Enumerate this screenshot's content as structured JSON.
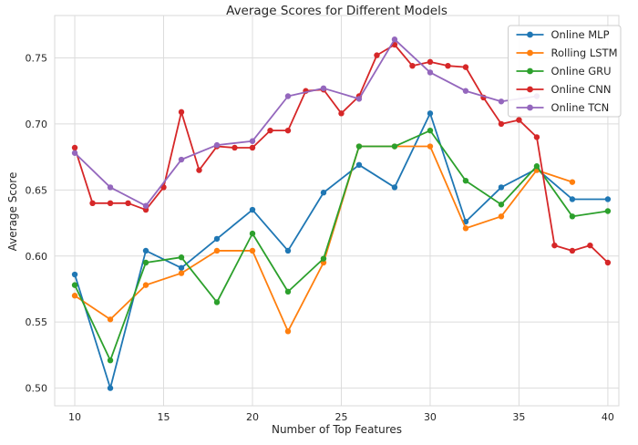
{
  "figure": {
    "title": "Average Scores for Different Models",
    "xlabel": "Number of Top Features",
    "ylabel": "Average Score"
  },
  "chart_data": {
    "type": "line",
    "title": "Average Scores for Different Models",
    "xlabel": "Number of Top Features",
    "ylabel": "Average Score",
    "grid": true,
    "legend_position": "upper right",
    "xlim": [
      8.87,
      40.62
    ],
    "ylim": [
      0.4866,
      0.7821
    ],
    "x_ticks": [
      10,
      15,
      20,
      25,
      30,
      35,
      40
    ],
    "y_ticks": [
      0.5,
      0.55,
      0.6,
      0.65,
      0.7,
      0.75
    ],
    "colors": {
      "grid": "#dcdcdc",
      "spine": "#d9d9d9",
      "text": "#262626",
      "legend_border": "#cccccc"
    },
    "series": [
      {
        "name": "Online MLP",
        "color": "#1f77b4",
        "x": [
          10,
          12,
          14,
          16,
          18,
          20,
          22,
          24,
          26,
          28,
          30,
          32,
          34,
          36,
          38,
          40
        ],
        "y": [
          0.586,
          0.5,
          0.604,
          0.591,
          0.613,
          0.635,
          0.604,
          0.648,
          0.669,
          0.652,
          0.708,
          0.626,
          0.652,
          0.666,
          0.643,
          0.643
        ]
      },
      {
        "name": "Rolling LSTM",
        "color": "#ff7f0e",
        "x": [
          10,
          12,
          14,
          16,
          18,
          20,
          22,
          24,
          26,
          28,
          30,
          32,
          34,
          36,
          38
        ],
        "y": [
          0.57,
          0.552,
          0.578,
          0.587,
          0.604,
          0.604,
          0.543,
          0.595,
          0.683,
          0.683,
          0.683,
          0.621,
          0.63,
          0.665,
          0.656
        ]
      },
      {
        "name": "Online GRU",
        "color": "#2ca02c",
        "x": [
          10,
          12,
          14,
          16,
          18,
          20,
          22,
          24,
          26,
          28,
          30,
          32,
          34,
          36,
          38,
          40
        ],
        "y": [
          0.578,
          0.521,
          0.595,
          0.599,
          0.565,
          0.617,
          0.573,
          0.598,
          0.683,
          0.683,
          0.695,
          0.657,
          0.639,
          0.668,
          0.63,
          0.634
        ]
      },
      {
        "name": "Online CNN",
        "color": "#d62728",
        "x": [
          10,
          11,
          12,
          13,
          14,
          15,
          16,
          17,
          18,
          19,
          20,
          21,
          22,
          23,
          24,
          25,
          26,
          27,
          28,
          29,
          30,
          31,
          32,
          33,
          34,
          35,
          36,
          37,
          38,
          39,
          40
        ],
        "y": [
          0.682,
          0.64,
          0.64,
          0.64,
          0.635,
          0.652,
          0.709,
          0.665,
          0.683,
          0.682,
          0.682,
          0.695,
          0.695,
          0.725,
          0.726,
          0.708,
          0.721,
          0.752,
          0.76,
          0.744,
          0.747,
          0.744,
          0.743,
          0.72,
          0.7,
          0.703,
          0.69,
          0.608,
          0.604,
          0.608,
          0.595
        ]
      },
      {
        "name": "Online TCN",
        "color": "#9467bd",
        "x": [
          10,
          12,
          14,
          16,
          18,
          20,
          22,
          24,
          26,
          28,
          30,
          32,
          34,
          36
        ],
        "y": [
          0.678,
          0.652,
          0.638,
          0.673,
          0.684,
          0.687,
          0.721,
          0.727,
          0.719,
          0.764,
          0.739,
          0.725,
          0.717,
          0.721
        ]
      }
    ]
  }
}
